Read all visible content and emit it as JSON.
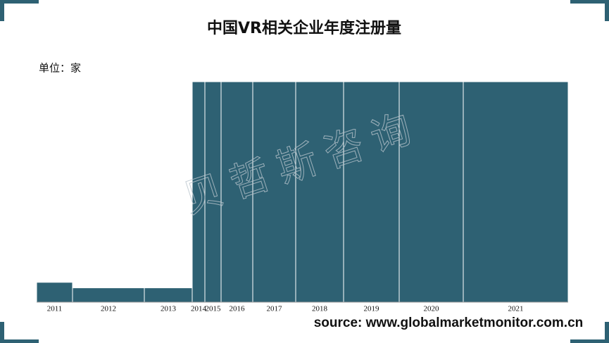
{
  "chart_data": {
    "type": "marimekko",
    "title": "中国VR相关企业年度注册量",
    "unit": "单位：家",
    "source": "source: www.globalmarketmonitor.com.cn",
    "watermark": "贝哲斯咨询",
    "categories": [
      "2011",
      "2012",
      "2013",
      "2014",
      "2015",
      "2016",
      "2017",
      "2018",
      "2019",
      "2020",
      "2021"
    ],
    "values": [
      9,
      6.5,
      6.5,
      100,
      100,
      100,
      100,
      100,
      100,
      100,
      100
    ],
    "widths": [
      51,
      102,
      68,
      18,
      23,
      45,
      61,
      68,
      79,
      91,
      149
    ],
    "ylim": [
      0,
      100
    ],
    "color": "#2e6173"
  }
}
